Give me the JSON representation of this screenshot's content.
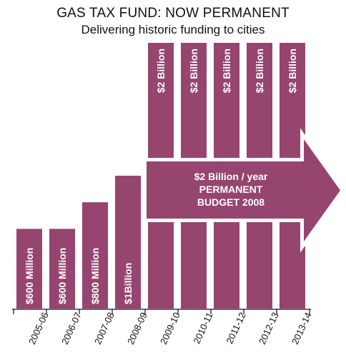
{
  "chart_data": {
    "type": "bar",
    "title": "GAS TAX FUND: NOW PERMANENT",
    "subtitle": "Delivering historic funding to cities",
    "categories": [
      "2005-06",
      "2006-07",
      "2007-08",
      "2008-09",
      "2009-10",
      "2010-11",
      "2011-12",
      "2012-13",
      "2013-14"
    ],
    "values": [
      0.6,
      0.6,
      0.8,
      1.0,
      2.0,
      2.0,
      2.0,
      2.0,
      2.0
    ],
    "unit": "billion dollars",
    "value_labels": [
      "$600 Million",
      "$600 Million",
      "$800 Million",
      "$1Billion",
      "$2 Billion",
      "$2 Billion",
      "$2 Billion",
      "$2 Billion",
      "$2 Billion"
    ],
    "ylim": [
      0,
      2.0
    ],
    "grid": false,
    "legend": "none",
    "bar_color": "#96456f",
    "annotation": {
      "lines": [
        "$2 Billion / year",
        "PERMANENT",
        "BUDGET 2008"
      ],
      "shape": "arrow",
      "spans_categories": [
        "2009-10",
        "2013-14"
      ]
    }
  }
}
